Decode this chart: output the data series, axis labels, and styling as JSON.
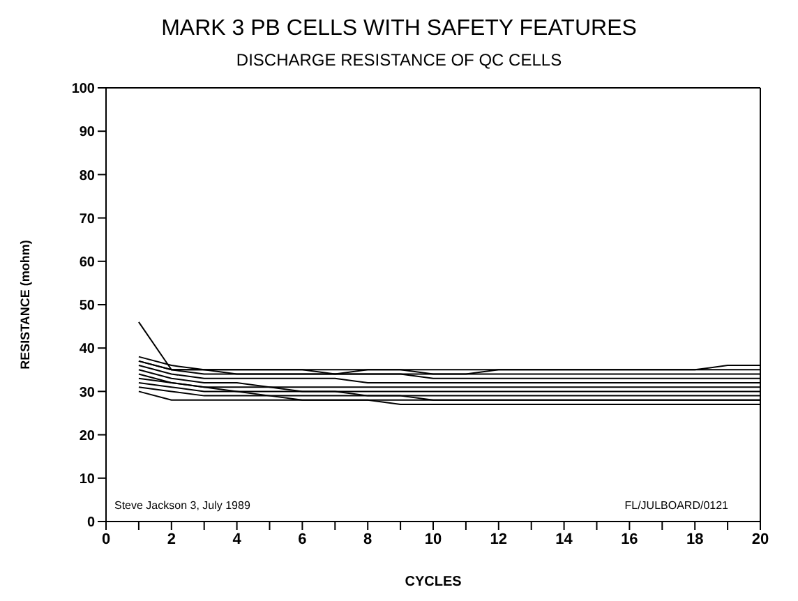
{
  "chart_data": {
    "type": "line",
    "title": "MARK 3 PB CELLS WITH SAFETY FEATURES",
    "subtitle": "DISCHARGE RESISTANCE OF QC CELLS",
    "xlabel": "CYCLES",
    "ylabel": "RESISTANCE (mohm)",
    "annotations": [
      "Steve Jackson 3, July 1989",
      "FL/JULBOARD/0121"
    ],
    "x": [
      1,
      2,
      3,
      4,
      5,
      6,
      7,
      8,
      9,
      10,
      11,
      12,
      13,
      14,
      15,
      16,
      17,
      18,
      19,
      20
    ],
    "xlim": [
      0,
      20
    ],
    "xticks": [
      0,
      {
        "value": 1,
        "label": null
      },
      2,
      {
        "value": 3,
        "label": null
      },
      4,
      {
        "value": 5,
        "label": null
      },
      6,
      {
        "value": 7,
        "label": null
      },
      8,
      {
        "value": 9,
        "label": null
      },
      10,
      {
        "value": 11,
        "label": null
      },
      12,
      {
        "value": 13,
        "label": null
      },
      14,
      {
        "value": 15,
        "label": null
      },
      16,
      {
        "value": 17,
        "label": null
      },
      18,
      {
        "value": 19,
        "label": null
      },
      20
    ],
    "ylim": [
      0,
      100
    ],
    "yticks": [
      0,
      10,
      20,
      30,
      40,
      50,
      60,
      70,
      80,
      90,
      100
    ],
    "marker": "none",
    "line_style": "solid",
    "series": [
      {
        "color": "#000000",
        "values": [
          46,
          35,
          34,
          34,
          34,
          34,
          34,
          34,
          34,
          34,
          34,
          34,
          34,
          34,
          34,
          34,
          34,
          34,
          34,
          34
        ]
      },
      {
        "color": "#000000",
        "values": [
          38,
          36,
          35,
          35,
          35,
          35,
          35,
          35,
          35,
          35,
          35,
          35,
          35,
          35,
          35,
          35,
          35,
          35,
          35,
          35
        ]
      },
      {
        "color": "#000000",
        "values": [
          37,
          35,
          35,
          34,
          34,
          34,
          34,
          34,
          34,
          33,
          33,
          33,
          33,
          33,
          33,
          33,
          33,
          33,
          33,
          33
        ]
      },
      {
        "color": "#000000",
        "values": [
          36,
          34,
          33,
          33,
          33,
          33,
          33,
          32,
          32,
          32,
          32,
          32,
          32,
          32,
          32,
          32,
          32,
          32,
          32,
          32
        ]
      },
      {
        "color": "#000000",
        "values": [
          35,
          33,
          32,
          32,
          31,
          31,
          31,
          31,
          31,
          31,
          31,
          31,
          31,
          31,
          31,
          31,
          31,
          31,
          31,
          31
        ]
      },
      {
        "color": "#000000",
        "values": [
          34,
          32,
          31,
          31,
          31,
          30,
          30,
          30,
          30,
          30,
          30,
          30,
          30,
          30,
          30,
          30,
          30,
          30,
          30,
          30
        ]
      },
      {
        "color": "#000000",
        "values": [
          33,
          32,
          31,
          30,
          30,
          30,
          30,
          29,
          29,
          29,
          29,
          29,
          29,
          29,
          29,
          29,
          29,
          29,
          29,
          29
        ]
      },
      {
        "color": "#000000",
        "values": [
          32,
          31,
          30,
          30,
          29,
          29,
          29,
          29,
          29,
          28,
          28,
          28,
          28,
          28,
          28,
          28,
          28,
          28,
          28,
          28
        ]
      },
      {
        "color": "#000000",
        "values": [
          31,
          30,
          29,
          29,
          29,
          28,
          28,
          28,
          28,
          28,
          28,
          28,
          28,
          28,
          28,
          28,
          28,
          28,
          28,
          28
        ]
      },
      {
        "color": "#000000",
        "values": [
          30,
          28,
          28,
          28,
          28,
          28,
          28,
          28,
          27,
          27,
          27,
          27,
          27,
          27,
          27,
          27,
          27,
          27,
          27,
          27
        ]
      },
      {
        "color": "#000000",
        "values": [
          37,
          35,
          35,
          35,
          35,
          35,
          34,
          35,
          35,
          34,
          34,
          35,
          35,
          35,
          35,
          35,
          35,
          35,
          36,
          36
        ]
      }
    ]
  }
}
